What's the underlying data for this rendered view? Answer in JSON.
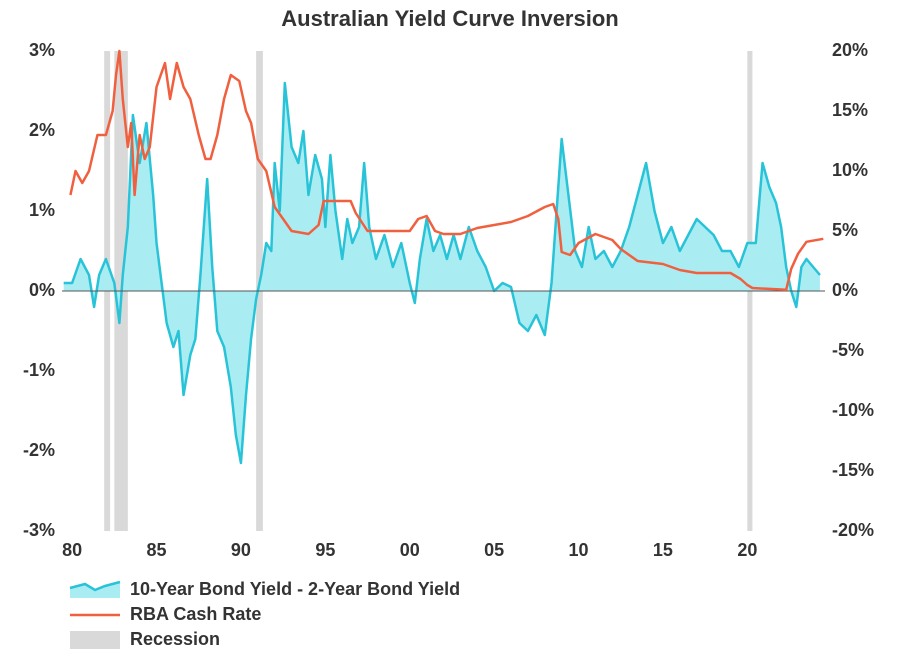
{
  "chart_data": {
    "type": "line",
    "title": "Australian Yield Curve Inversion",
    "xlim": [
      1979.4,
      2024.6
    ],
    "xticks": [
      {
        "value": 1980,
        "label": "80"
      },
      {
        "value": 1985,
        "label": "85"
      },
      {
        "value": 1990,
        "label": "90"
      },
      {
        "value": 1995,
        "label": "95"
      },
      {
        "value": 2000,
        "label": "00"
      },
      {
        "value": 2005,
        "label": "05"
      },
      {
        "value": 2010,
        "label": "10"
      },
      {
        "value": 2015,
        "label": "15"
      },
      {
        "value": 2020,
        "label": "20"
      }
    ],
    "ylim": [
      -3,
      3
    ],
    "yticks": [
      {
        "value": 3,
        "label": "3%"
      },
      {
        "value": 2,
        "label": "2%"
      },
      {
        "value": 1,
        "label": "1%"
      },
      {
        "value": 0,
        "label": "0%"
      },
      {
        "value": -1,
        "label": "-1%"
      },
      {
        "value": -2,
        "label": "-2%"
      },
      {
        "value": -3,
        "label": "-3%"
      }
    ],
    "y2lim": [
      -20,
      20
    ],
    "y2ticks": [
      {
        "value": 20,
        "label": "20%"
      },
      {
        "value": 15,
        "label": "15%"
      },
      {
        "value": 10,
        "label": "10%"
      },
      {
        "value": 5,
        "label": "5%"
      },
      {
        "value": 0,
        "label": "0%"
      },
      {
        "value": -5,
        "label": "-5%"
      },
      {
        "value": -10,
        "label": "-10%"
      },
      {
        "value": -15,
        "label": "-15%"
      },
      {
        "value": -20,
        "label": "-20%"
      }
    ],
    "series": [
      {
        "name": "10-Year Bond Yield - 2-Year Bond Yield",
        "color": "#29c3d8",
        "fill": "#a9edf3",
        "x": [
          1979.5,
          1980,
          1980.5,
          1981,
          1981.3,
          1981.6,
          1982,
          1982.5,
          1982.8,
          1983,
          1983.3,
          1983.6,
          1984,
          1984.4,
          1984.8,
          1985,
          1985.3,
          1985.6,
          1986,
          1986.3,
          1986.6,
          1987,
          1987.3,
          1987.6,
          1988,
          1988.3,
          1988.6,
          1989,
          1989.4,
          1989.7,
          1990,
          1990.3,
          1990.6,
          1990.9,
          1991.2,
          1991.5,
          1991.8,
          1992,
          1992.3,
          1992.6,
          1993,
          1993.4,
          1993.7,
          1994,
          1994.4,
          1994.8,
          1995,
          1995.3,
          1995.6,
          1996,
          1996.3,
          1996.6,
          1997,
          1997.3,
          1997.6,
          1998,
          1998.5,
          1999,
          1999.5,
          2000,
          2000.3,
          2000.6,
          2001,
          2001.4,
          2001.8,
          2002.2,
          2002.6,
          2003,
          2003.5,
          2004,
          2004.5,
          2005,
          2005.5,
          2006,
          2006.5,
          2007,
          2007.5,
          2008,
          2008.4,
          2008.7,
          2009,
          2009.4,
          2009.8,
          2010.2,
          2010.6,
          2011,
          2011.5,
          2012,
          2012.5,
          2013,
          2013.5,
          2014,
          2014.5,
          2015,
          2015.5,
          2016,
          2016.5,
          2017,
          2017.5,
          2018,
          2018.5,
          2019,
          2019.5,
          2020,
          2020.5,
          2020.9,
          2021.3,
          2021.7,
          2022,
          2022.3,
          2022.6,
          2022.9,
          2023.2,
          2023.5,
          2023.9,
          2024.3
        ],
        "values": [
          0.1,
          0.1,
          0.4,
          0.2,
          -0.2,
          0.2,
          0.4,
          0.1,
          -0.4,
          0.2,
          0.8,
          2.2,
          1.6,
          2.1,
          1.2,
          0.6,
          0.1,
          -0.4,
          -0.7,
          -0.5,
          -1.3,
          -0.8,
          -0.6,
          0.2,
          1.4,
          0.3,
          -0.5,
          -0.7,
          -1.2,
          -1.8,
          -2.15,
          -1.3,
          -0.6,
          -0.1,
          0.2,
          0.6,
          0.5,
          1.6,
          1.0,
          2.6,
          1.8,
          1.6,
          2.0,
          1.2,
          1.7,
          1.4,
          0.8,
          1.7,
          1.0,
          0.4,
          0.9,
          0.6,
          0.8,
          1.6,
          0.8,
          0.4,
          0.7,
          0.3,
          0.6,
          0.1,
          -0.15,
          0.4,
          0.9,
          0.5,
          0.7,
          0.4,
          0.7,
          0.4,
          0.8,
          0.5,
          0.3,
          0.0,
          0.1,
          0.05,
          -0.4,
          -0.5,
          -0.3,
          -0.55,
          0.1,
          1.0,
          1.9,
          1.2,
          0.5,
          0.3,
          0.8,
          0.4,
          0.5,
          0.3,
          0.5,
          0.8,
          1.2,
          1.6,
          1.0,
          0.6,
          0.8,
          0.5,
          0.7,
          0.9,
          0.8,
          0.7,
          0.5,
          0.5,
          0.3,
          0.6,
          0.6,
          1.6,
          1.3,
          1.1,
          0.8,
          0.3,
          0.0,
          -0.2,
          0.3,
          0.4,
          0.3,
          0.2
        ]
      },
      {
        "name": "RBA Cash Rate",
        "color": "#f0603f",
        "axis": "y2",
        "x": [
          1979.9,
          1980.2,
          1980.6,
          1981,
          1981.5,
          1982,
          1982.4,
          1982.6,
          1982.8,
          1983,
          1983.3,
          1983.5,
          1983.7,
          1984,
          1984.3,
          1984.6,
          1985,
          1985.5,
          1985.8,
          1986.2,
          1986.6,
          1987,
          1987.5,
          1987.9,
          1988.2,
          1988.6,
          1989,
          1989.4,
          1989.9,
          1990.3,
          1990.6,
          1991,
          1991.5,
          1992,
          1992.5,
          1993,
          1994,
          1994.6,
          1994.9,
          1996.5,
          1996.8,
          1997.5,
          1998.5,
          2000,
          2000.5,
          2001,
          2001.5,
          2002,
          2003,
          2004,
          2005,
          2006,
          2007,
          2008,
          2008.5,
          2008.8,
          2009,
          2009.5,
          2010,
          2011,
          2012,
          2012.5,
          2013,
          2013.5,
          2015,
          2016,
          2017,
          2019,
          2019.6,
          2020,
          2020.3,
          2022.3,
          2022.6,
          2023,
          2023.5,
          2024.5
        ],
        "values": [
          8,
          10,
          9,
          10,
          13,
          13,
          15,
          18,
          20,
          16,
          12,
          14,
          8,
          13,
          11,
          12,
          17,
          19,
          16,
          19,
          17,
          16,
          13,
          11,
          11,
          13,
          16,
          18,
          17.5,
          15,
          14,
          11,
          10,
          7,
          6,
          5,
          4.75,
          5.5,
          7.5,
          7.5,
          6.5,
          5,
          5,
          5,
          6,
          6.25,
          5,
          4.75,
          4.75,
          5.25,
          5.5,
          5.75,
          6.25,
          7,
          7.25,
          6,
          3.25,
          3,
          4,
          4.75,
          4.25,
          3.5,
          3,
          2.5,
          2.25,
          1.75,
          1.5,
          1.5,
          1,
          0.5,
          0.25,
          0.1,
          1.85,
          3.1,
          4.1,
          4.35
        ]
      },
      {
        "name": "Recession",
        "color": "#d9d9d9",
        "periods": [
          [
            1981.9,
            1982.25
          ],
          [
            1982.5,
            1983.3
          ],
          [
            1990.9,
            1991.3
          ],
          [
            2020.0,
            2020.3
          ]
        ]
      }
    ]
  }
}
